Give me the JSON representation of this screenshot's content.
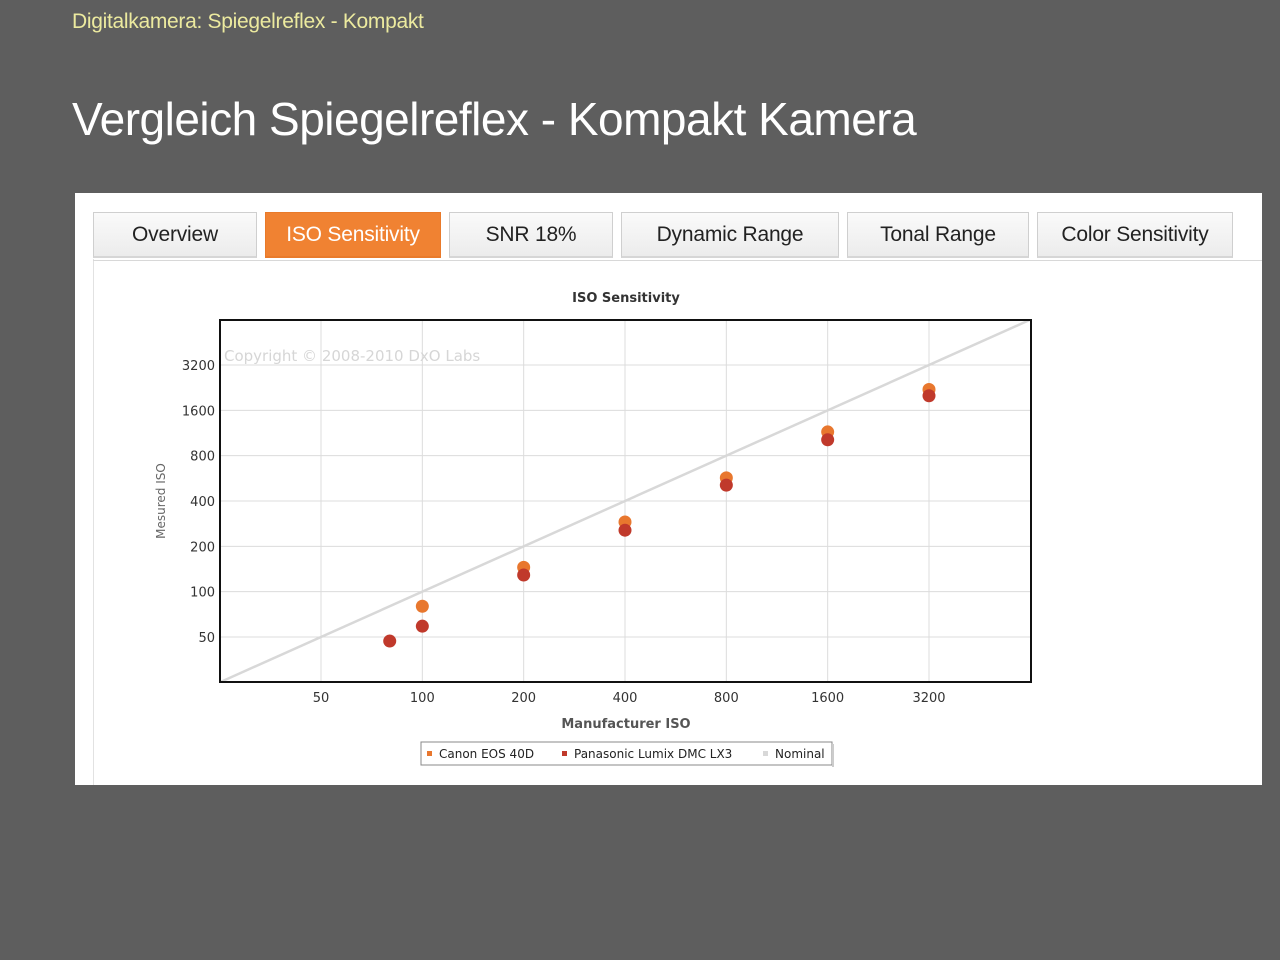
{
  "slide": {
    "header": "Digitalkamera: Spiegelreflex - Kompakt",
    "title": "Vergleich Spiegelreflex - Kompakt Kamera"
  },
  "tabs": [
    {
      "label": "Overview",
      "active": false
    },
    {
      "label": "ISO Sensitivity",
      "active": true
    },
    {
      "label": "SNR 18%",
      "active": false
    },
    {
      "label": "Dynamic Range",
      "active": false
    },
    {
      "label": "Tonal Range",
      "active": false
    },
    {
      "label": "Color Sensitivity",
      "active": false
    }
  ],
  "colors": {
    "accent": "#f08232",
    "canon": "#e8772e",
    "panasonic": "#c0392b",
    "nominal": "#d8d8d8"
  },
  "chart_data": {
    "type": "scatter",
    "title": "ISO Sensitivity",
    "xlabel": "Manufacturer ISO",
    "ylabel": "Mesured ISO",
    "watermark": "Copyright © 2008-2010 DxO Labs",
    "x_scale": "log2",
    "y_scale": "log2",
    "x_ticks": [
      50,
      100,
      200,
      400,
      800,
      1600,
      3200
    ],
    "y_ticks": [
      50,
      100,
      200,
      400,
      800,
      1600,
      3200
    ],
    "xlim": [
      25,
      6400
    ],
    "ylim": [
      25,
      6400
    ],
    "grid": true,
    "legend_position": "bottom-center",
    "series": [
      {
        "name": "Canon EOS 40D",
        "color": "#e8772e",
        "points": [
          {
            "x": 100,
            "y": 80
          },
          {
            "x": 200,
            "y": 145
          },
          {
            "x": 400,
            "y": 290
          },
          {
            "x": 800,
            "y": 570
          },
          {
            "x": 1600,
            "y": 1150
          },
          {
            "x": 3200,
            "y": 2200
          }
        ]
      },
      {
        "name": "Panasonic Lumix DMC LX3",
        "color": "#c0392b",
        "points": [
          {
            "x": 80,
            "y": 47
          },
          {
            "x": 100,
            "y": 59
          },
          {
            "x": 200,
            "y": 129
          },
          {
            "x": 400,
            "y": 256
          },
          {
            "x": 800,
            "y": 510
          },
          {
            "x": 1600,
            "y": 1020
          },
          {
            "x": 3200,
            "y": 2000
          }
        ]
      },
      {
        "name": "Nominal",
        "color": "#d8d8d8",
        "kind": "line",
        "points": [
          {
            "x": 25,
            "y": 25
          },
          {
            "x": 6400,
            "y": 6400
          }
        ]
      }
    ]
  }
}
